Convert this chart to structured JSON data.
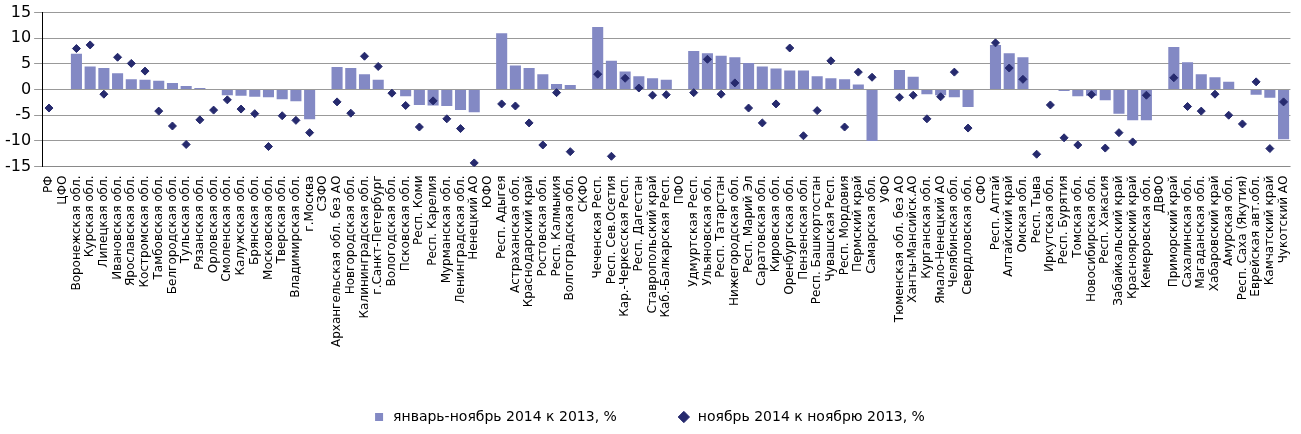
{
  "chart_data": {
    "type": "bar",
    "categories": [
      "РФ",
      "ЦФО",
      "Воронежская обл.",
      "Курская обл.",
      "Липецкая обл.",
      "Ивановская обл.",
      "Ярославская обл.",
      "Костромская обл.",
      "Тамбовская обл.",
      "Белгородская обл.",
      "Тульская обл.",
      "Рязанская обл.",
      "Орловская обл.",
      "Смоленская обл.",
      "Калужская обл.",
      "Брянская обл.",
      "Московская обл.",
      "Тверская обл.",
      "Владимирская обл.",
      "г.Москва",
      "СЗФО",
      "Архангельская обл. без АО",
      "Новгородская обл.",
      "Калининградская обл.",
      "г.Санкт-Петербург",
      "Вологодская обл.",
      "Псковская обл.",
      "Респ. Коми",
      "Респ. Карелия",
      "Мурманская обл.",
      "Ленинградская обл.",
      "Ненецкий АО",
      "ЮФО",
      "Респ. Адыгея",
      "Астраханская обл.",
      "Краснодарский край",
      "Ростовская обл.",
      "Респ. Калмыкия",
      "Волгоградская обл.",
      "СКФО",
      "Чеченская Респ.",
      "Респ. Сев.Осетия",
      "Кар.-Черкесская Респ.",
      "Респ. Дагестан",
      "Ставропольский край",
      "Каб.-Балкарская Респ.",
      "ПФО",
      "Удмуртская Респ.",
      "Ульяновская обл.",
      "Респ. Татарстан",
      "Нижегородская обл.",
      "Респ. Марий Эл",
      "Саратовская обл.",
      "Кировская обл.",
      "Оренбургская обл.",
      "Пензенская обл.",
      "Респ. Башкортостан",
      "Чувашская Респ.",
      "Респ. Мордовия",
      "Пермский край",
      "Самарская обл.",
      "УФО",
      "Тюменская обл. без АО",
      "Ханты-Мансийск.АО",
      "Курганская обл.",
      "Ямало-Ненецкий АО",
      "Челябинская обл.",
      "Свердловская обл.",
      "СФО",
      "Респ. Алтай",
      "Алтайский край",
      "Омская обл.",
      "Респ. Тыва",
      "Иркутская обл.",
      "Респ. Бурятия",
      "Томская обл.",
      "Новосибирская обл.",
      "Респ. Хакасия",
      "Забайкальский край",
      "Красноярский край",
      "Кемеровская обл.",
      "ДВФО",
      "Приморский край",
      "Сахалинская обл.",
      "Магаданская обл.",
      "Хабаровский край",
      "Амурская обл.",
      "Респ. Саха (Якутия)",
      "Еврейская авт.обл.",
      "Камчатский край",
      "Чукотский АО"
    ],
    "series": [
      {
        "name": "январь-ноябрь 2014 к 2013, %",
        "color": "#8389c4",
        "values": [
          null,
          null,
          7.0,
          4.5,
          4.2,
          3.2,
          2.0,
          1.9,
          1.7,
          1.3,
          0.7,
          0.3,
          null,
          -1.1,
          -1.2,
          -1.4,
          -1.5,
          -1.9,
          -2.3,
          -5.8,
          null,
          4.4,
          4.2,
          3.0,
          1.9,
          null,
          -1.3,
          -3.0,
          -3.1,
          -3.2,
          -4.0,
          -4.4,
          null,
          11.0,
          4.7,
          4.2,
          3.0,
          1.1,
          0.9,
          null,
          12.2,
          5.6,
          3.5,
          2.6,
          2.2,
          1.9,
          null,
          7.5,
          7.1,
          6.6,
          6.3,
          5.2,
          4.5,
          4.1,
          3.7,
          3.7,
          2.6,
          2.2,
          2.0,
          1.0,
          -10.0,
          null,
          3.8,
          2.5,
          -0.9,
          -1.1,
          -1.5,
          -3.4,
          null,
          8.7,
          7.1,
          6.3,
          null,
          null,
          -0.3,
          -1.3,
          -1.2,
          -2.1,
          -4.7,
          -6.0,
          -6.0,
          null,
          8.3,
          5.3,
          3.0,
          2.4,
          1.5,
          null,
          -1.0,
          -1.6,
          -9.7
        ]
      },
      {
        "name": "ноябрь 2014 к ноябрю 2013, %",
        "type": "scatter",
        "color": "#262a6e",
        "values": [
          -3.6,
          null,
          8.0,
          8.7,
          -0.9,
          6.3,
          5.1,
          3.6,
          -4.2,
          -7.1,
          -10.7,
          -5.9,
          -4.0,
          -2.0,
          -3.8,
          -4.7,
          -11.1,
          -5.1,
          -6.0,
          -8.4,
          null,
          -2.4,
          -4.6,
          6.5,
          4.5,
          -0.7,
          -3.1,
          -7.3,
          -2.2,
          -5.7,
          -7.6,
          -14.3,
          null,
          -2.8,
          -3.2,
          -6.5,
          -10.8,
          -0.6,
          -12.1,
          null,
          3.0,
          -13.0,
          2.2,
          0.3,
          -1.1,
          -1.0,
          null,
          -0.6,
          5.9,
          -0.9,
          1.3,
          -3.6,
          -6.5,
          -2.8,
          8.1,
          -9.0,
          -4.1,
          5.6,
          -7.3,
          3.4,
          2.4,
          null,
          -1.5,
          -1.1,
          -5.7,
          -1.4,
          3.4,
          -7.5,
          null,
          9.1,
          4.2,
          2.0,
          -12.6,
          -3.0,
          -9.4,
          -10.8,
          -1.0,
          -11.4,
          -8.4,
          -10.2,
          -1.1,
          null,
          2.3,
          -3.3,
          -4.2,
          -0.9,
          -5.0,
          -6.7,
          1.5,
          -11.5,
          -2.4
        ]
      }
    ],
    "ylim": [
      -15,
      15
    ],
    "yticks": [
      -15,
      -10,
      -5,
      0,
      5,
      10,
      15
    ],
    "grid": "y",
    "legend": "bottom",
    "marker": "diamond"
  }
}
